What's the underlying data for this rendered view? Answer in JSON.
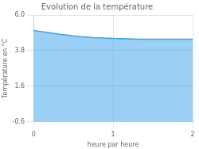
{
  "chart_data": {
    "type": "area",
    "title": "Evolution de la température",
    "xlabel": "heure par heure",
    "ylabel": "Température en °C",
    "x": [
      0.0,
      0.083,
      0.167,
      0.25,
      0.333,
      0.417,
      0.5,
      0.583,
      0.667,
      0.75,
      0.833,
      0.917,
      1.0,
      1.083,
      1.167,
      1.25,
      1.333,
      1.417,
      1.5,
      1.583,
      1.667,
      1.75,
      1.833,
      1.917,
      2.0
    ],
    "values": [
      5.05,
      4.99,
      4.93,
      4.87,
      4.81,
      4.76,
      4.71,
      4.67,
      4.64,
      4.61,
      4.59,
      4.57,
      4.55,
      4.54,
      4.53,
      4.52,
      4.51,
      4.51,
      4.51,
      4.51,
      4.51,
      4.51,
      4.51,
      4.51,
      4.51
    ],
    "xlim": [
      0,
      2
    ],
    "xticks": [
      0,
      1,
      2
    ],
    "ylim": [
      -0.6,
      6.0
    ],
    "yticks": [
      -0.6,
      1.6,
      3.8,
      {
        "value": 6.0,
        "label": "6.0"
      }
    ],
    "grid": true
  }
}
